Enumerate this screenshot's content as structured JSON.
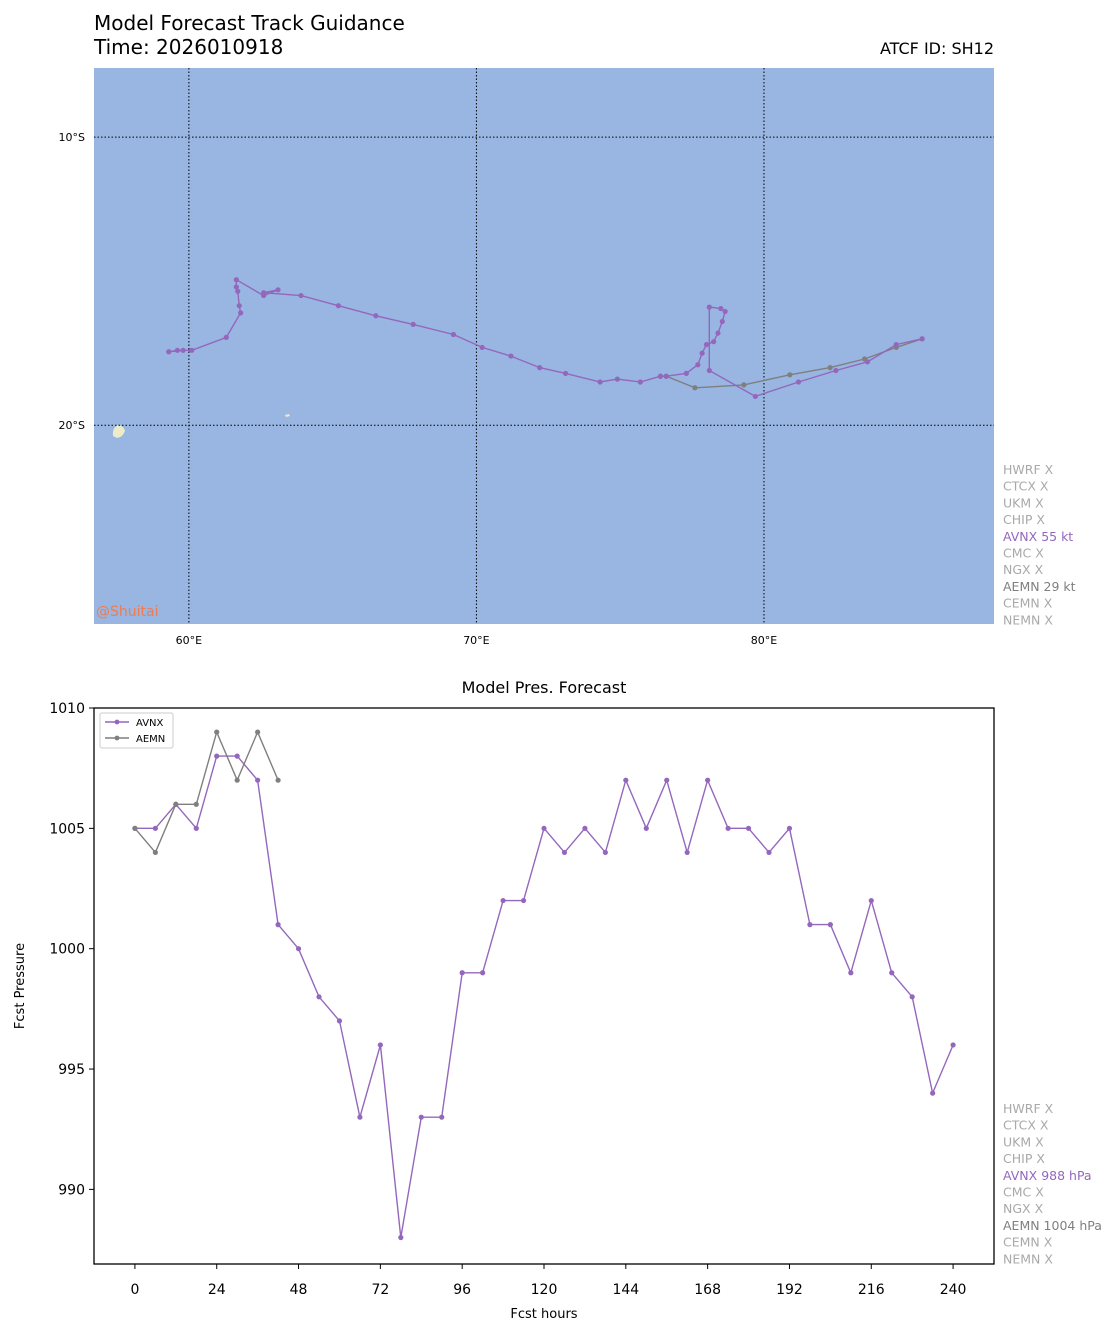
{
  "header": {
    "title": "Model Forecast Track Guidance",
    "time_label": "Time: 2026010918",
    "atcf_label": "ATCF ID: SH12",
    "watermark": "@Shuitai"
  },
  "colors": {
    "ocean": "#98b6e1",
    "land": "#ececc8",
    "avnx": "#9467bd",
    "aemn": "#7f7f7f",
    "inactive": "#a9a9a9",
    "watermark": "#f07b4f"
  },
  "chart_data": [
    {
      "type": "line",
      "subtype": "map-track",
      "title": "",
      "xlim": [
        56.7,
        88.0
      ],
      "ylim": [
        -26.9,
        -7.6
      ],
      "x_ticks": [
        60,
        70,
        80
      ],
      "x_tick_labels": [
        "60°E",
        "70°E",
        "80°E"
      ],
      "y_ticks": [
        -10,
        -20
      ],
      "y_tick_labels": [
        "10°S",
        "20°S"
      ],
      "grid": "dotted",
      "series": [
        {
          "name": "AVNX",
          "color": "#9467bd",
          "lon": [
            59.8,
            59.3,
            59.6,
            60.1,
            61.3,
            61.8,
            61.75,
            61.7,
            61.65,
            61.65,
            62.6,
            63.1,
            62.6,
            63.9,
            65.2,
            66.5,
            67.8,
            69.2,
            70.2,
            71.2,
            72.2,
            73.1,
            74.3,
            74.9,
            75.7,
            76.4,
            76.6,
            77.3,
            77.7,
            77.85,
            78.0,
            78.25,
            78.4,
            78.55,
            78.65,
            78.5,
            78.1,
            78.1,
            79.7,
            81.2,
            82.5,
            83.6,
            84.6,
            85.5
          ],
          "lat": [
            -17.4,
            -17.45,
            -17.4,
            -17.4,
            -16.95,
            -16.1,
            -15.85,
            -15.35,
            -15.2,
            -14.95,
            -15.5,
            -15.3,
            -15.4,
            -15.5,
            -15.85,
            -16.2,
            -16.5,
            -16.85,
            -17.3,
            -17.6,
            -18.0,
            -18.2,
            -18.5,
            -18.4,
            -18.5,
            -18.3,
            -18.3,
            -18.2,
            -17.9,
            -17.5,
            -17.2,
            -17.1,
            -16.8,
            -16.4,
            -16.05,
            -15.95,
            -15.9,
            -18.1,
            -19.0,
            -18.5,
            -18.1,
            -17.8,
            -17.2,
            -17.0
          ]
        },
        {
          "name": "AEMN",
          "color": "#7f7f7f",
          "lon": [
            85.5,
            84.6,
            83.5,
            82.3,
            80.9,
            79.3,
            77.6,
            76.6,
            76.4
          ],
          "lat": [
            -17.0,
            -17.3,
            -17.7,
            -18.0,
            -18.25,
            -18.6,
            -18.7,
            -18.3,
            -18.3
          ]
        }
      ]
    },
    {
      "type": "line",
      "title": "Model Pres. Forecast",
      "xlabel": "Fcst hours",
      "ylabel": "Fcst Pressure",
      "xlim": [
        -12,
        252
      ],
      "ylim": [
        986.9,
        1010
      ],
      "x_ticks": [
        0,
        24,
        48,
        72,
        96,
        120,
        144,
        168,
        192,
        216,
        240
      ],
      "y_ticks": [
        990,
        995,
        1000,
        1005,
        1010
      ],
      "legend": "upper-left",
      "series": [
        {
          "name": "AVNX",
          "color": "#9467bd",
          "x": [
            0,
            6,
            12,
            18,
            24,
            30,
            36,
            42,
            48,
            54,
            60,
            66,
            72,
            78,
            84,
            90,
            96,
            102,
            108,
            114,
            120,
            126,
            132,
            138,
            144,
            150,
            156,
            162,
            168,
            174,
            180,
            186,
            192,
            198,
            204,
            210,
            216,
            222,
            228,
            234,
            240
          ],
          "y": [
            1005,
            1005,
            1006,
            1005,
            1008,
            1008,
            1007,
            1001,
            1000,
            998,
            997,
            993,
            996,
            988,
            993,
            993,
            999,
            999,
            1002,
            1002,
            1005,
            1004,
            1005,
            1004,
            1007,
            1005,
            1007,
            1004,
            1007,
            1005,
            1005,
            1004,
            1005,
            1001,
            1001,
            999,
            1002,
            999,
            998,
            994,
            996
          ]
        },
        {
          "name": "AEMN",
          "color": "#7f7f7f",
          "x": [
            0,
            6,
            12,
            18,
            24,
            30,
            36,
            42
          ],
          "y": [
            1005,
            1004,
            1006,
            1006,
            1009,
            1007,
            1009,
            1007
          ]
        }
      ]
    }
  ],
  "track_models": [
    {
      "label": "HWRF X",
      "active": false
    },
    {
      "label": "CTCX X",
      "active": false
    },
    {
      "label": "UKM X",
      "active": false
    },
    {
      "label": "CHIP X",
      "active": false
    },
    {
      "label": "AVNX 55 kt",
      "active": true,
      "color": "#9467bd"
    },
    {
      "label": "CMC X",
      "active": false
    },
    {
      "label": "NGX X",
      "active": false
    },
    {
      "label": "AEMN 29 kt",
      "active": true,
      "color": "#7f7f7f"
    },
    {
      "label": "CEMN X",
      "active": false
    },
    {
      "label": "NEMN X",
      "active": false
    }
  ],
  "pres_models": [
    {
      "label": "HWRF X",
      "active": false
    },
    {
      "label": "CTCX X",
      "active": false
    },
    {
      "label": "UKM X",
      "active": false
    },
    {
      "label": "CHIP X",
      "active": false
    },
    {
      "label": "AVNX 988 hPa",
      "active": true,
      "color": "#9467bd"
    },
    {
      "label": "CMC X",
      "active": false
    },
    {
      "label": "NGX X",
      "active": false
    },
    {
      "label": "AEMN 1004 hPa",
      "active": true,
      "color": "#7f7f7f"
    },
    {
      "label": "CEMN X",
      "active": false
    },
    {
      "label": "NEMN X",
      "active": false
    }
  ]
}
